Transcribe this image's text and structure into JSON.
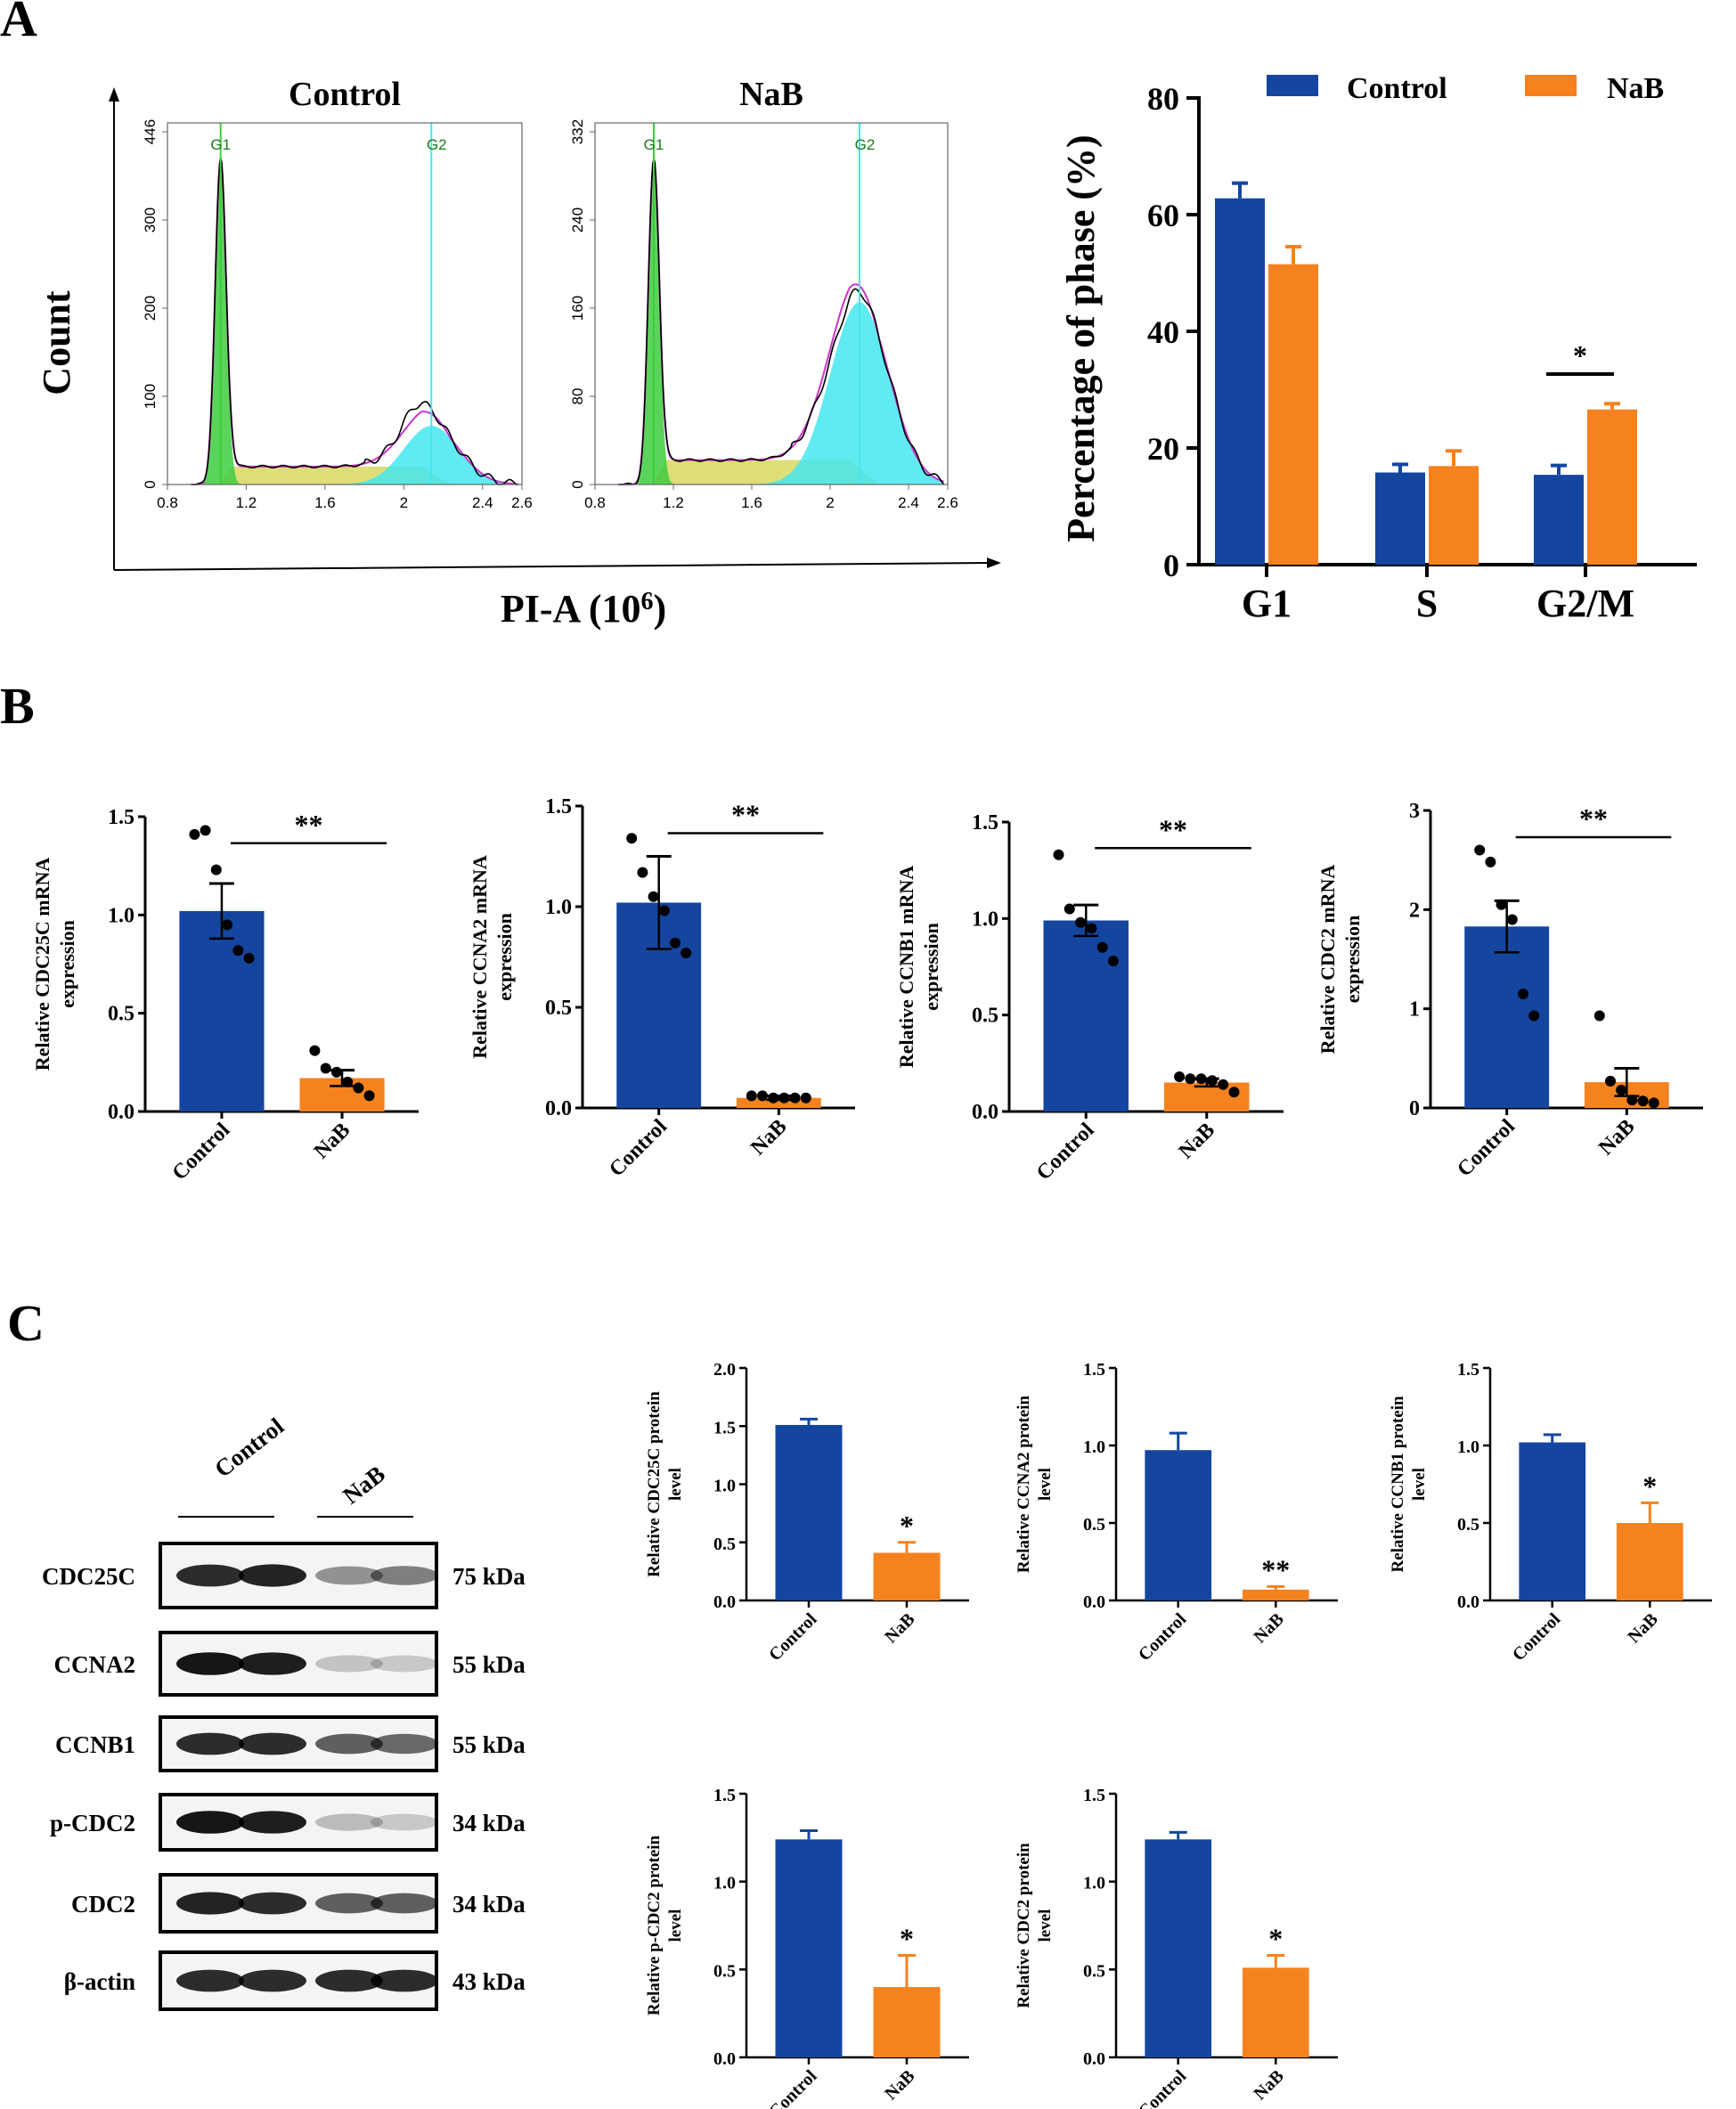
{
  "panels": {
    "a": "A",
    "b": "B",
    "c": "C"
  },
  "colors": {
    "control": "#1446a0",
    "nab": "#f5821f",
    "green": "#3dcc3d",
    "yellow": "#d8d860",
    "cyan": "#44e6ee",
    "magenta": "#cc33cc"
  },
  "flow": {
    "ylabel": "Count",
    "xlabel": "PI-A (10",
    "xlabel_sup": "6",
    "xlabel_close": ")",
    "plots": [
      {
        "title": "Control",
        "yticks": [
          "0",
          "100",
          "200",
          "300",
          "446"
        ],
        "xticks": [
          "0.8",
          "1.2",
          "1.6",
          "2",
          "2.4",
          "2.6"
        ],
        "gates": [
          "G1",
          "G2"
        ]
      },
      {
        "title": "NaB",
        "yticks": [
          "0",
          "80",
          "160",
          "240",
          "332"
        ],
        "xticks": [
          "0.8",
          "1.2",
          "1.6",
          "2",
          "2.4",
          "2.6"
        ],
        "gates": [
          "G1",
          "G2"
        ]
      }
    ]
  },
  "chart_data": [
    {
      "id": "phase",
      "type": "bar",
      "ylabel": "Percentage of phase (%)",
      "categories": [
        "G1",
        "S",
        "G2/M"
      ],
      "ylim": [
        0,
        80
      ],
      "yticks": [
        "0",
        "20",
        "40",
        "60",
        "80"
      ],
      "legend": [
        "Control",
        "NaB"
      ],
      "series": [
        {
          "name": "Control",
          "values": [
            62.8,
            15.8,
            15.4
          ],
          "err": [
            2.6,
            1.4,
            1.6
          ]
        },
        {
          "name": "NaB",
          "values": [
            51.5,
            16.9,
            26.6
          ],
          "err": [
            3.0,
            2.6,
            1.0
          ]
        }
      ],
      "sig": "*"
    },
    {
      "id": "b1",
      "type": "bar",
      "ylabel": [
        "Relative CDC25C mRNA",
        "expression"
      ],
      "categories": [
        "Control",
        "NaB"
      ],
      "ylim": [
        0,
        1.5
      ],
      "yticks": [
        "0.0",
        "0.5",
        "1.0",
        "1.5"
      ],
      "values": [
        1.02,
        0.17
      ],
      "err": [
        0.14,
        0.04
      ],
      "points": [
        [
          1.41,
          1.43,
          1.23,
          0.95,
          0.82,
          0.78
        ],
        [
          0.31,
          0.22,
          0.2,
          0.15,
          0.12,
          0.08
        ]
      ],
      "sig": "**"
    },
    {
      "id": "b2",
      "type": "bar",
      "ylabel": [
        "Relative CCNA2 mRNA",
        "expression"
      ],
      "categories": [
        "Control",
        "NaB"
      ],
      "ylim": [
        0,
        1.5
      ],
      "yticks": [
        "0.0",
        "0.5",
        "1.0",
        "1.5"
      ],
      "values": [
        1.02,
        0.05
      ],
      "err": [
        0.23,
        0.01
      ],
      "points": [
        [
          1.34,
          1.17,
          1.05,
          0.98,
          0.82,
          0.77
        ],
        [
          0.06,
          0.06,
          0.05,
          0.05,
          0.05,
          0.05
        ]
      ],
      "sig": "**"
    },
    {
      "id": "b3",
      "type": "bar",
      "ylabel": [
        "Relative CCNB1 mRNA",
        "expression"
      ],
      "categories": [
        "Control",
        "NaB"
      ],
      "ylim": [
        0,
        1.5
      ],
      "yticks": [
        "0.0",
        "0.5",
        "1.0",
        "1.5"
      ],
      "values": [
        0.99,
        0.15
      ],
      "err": [
        0.08,
        0.02
      ],
      "points": [
        [
          1.33,
          1.05,
          0.98,
          0.95,
          0.85,
          0.78
        ],
        [
          0.18,
          0.17,
          0.17,
          0.16,
          0.14,
          0.1
        ]
      ],
      "sig": "**"
    },
    {
      "id": "b4",
      "type": "bar",
      "ylabel": [
        "Relative CDC2 mRNA",
        "expression"
      ],
      "categories": [
        "Control",
        "NaB"
      ],
      "ylim": [
        0,
        3
      ],
      "yticks": [
        "0",
        "1",
        "2",
        "3"
      ],
      "values": [
        1.83,
        0.26
      ],
      "err": [
        0.26,
        0.14
      ],
      "points": [
        [
          2.6,
          2.48,
          2.05,
          1.9,
          1.15,
          0.93
        ],
        [
          0.93,
          0.27,
          0.18,
          0.08,
          0.07,
          0.05
        ]
      ],
      "sig": "**"
    },
    {
      "id": "c1",
      "type": "bar",
      "ylabel": [
        "Relative CDC25C protein",
        "level"
      ],
      "categories": [
        "Control",
        "NaB"
      ],
      "ylim": [
        0,
        2
      ],
      "yticks": [
        "0.0",
        "0.5",
        "1.0",
        "1.5",
        "2.0"
      ],
      "values": [
        1.51,
        0.41
      ],
      "err": [
        0.05,
        0.09
      ],
      "sig": "*"
    },
    {
      "id": "c2",
      "type": "bar",
      "ylabel": [
        "Relative CCNA2 protein",
        "level"
      ],
      "categories": [
        "Control",
        "NaB"
      ],
      "ylim": [
        0,
        1.5
      ],
      "yticks": [
        "0.0",
        "0.5",
        "1.0",
        "1.5"
      ],
      "values": [
        0.97,
        0.07
      ],
      "err": [
        0.11,
        0.02
      ],
      "sig": "**"
    },
    {
      "id": "c3",
      "type": "bar",
      "ylabel": [
        "Relative CCNB1 protein",
        "level"
      ],
      "categories": [
        "Control",
        "NaB"
      ],
      "ylim": [
        0,
        1.5
      ],
      "yticks": [
        "0.0",
        "0.5",
        "1.0",
        "1.5"
      ],
      "values": [
        1.02,
        0.5
      ],
      "err": [
        0.05,
        0.13
      ],
      "sig": "*"
    },
    {
      "id": "c4",
      "type": "bar",
      "ylabel": [
        "Relative p-CDC2 protein",
        "level"
      ],
      "categories": [
        "Control",
        "NaB"
      ],
      "ylim": [
        0,
        1.5
      ],
      "yticks": [
        "0.0",
        "0.5",
        "1.0",
        "1.5"
      ],
      "values": [
        1.24,
        0.4
      ],
      "err": [
        0.05,
        0.18
      ],
      "sig": "*"
    },
    {
      "id": "c5",
      "type": "bar",
      "ylabel": [
        "Relative CDC2 protein",
        "level"
      ],
      "categories": [
        "Control",
        "NaB"
      ],
      "ylim": [
        0,
        1.5
      ],
      "yticks": [
        "0.0",
        "0.5",
        "1.0",
        "1.5"
      ],
      "values": [
        1.24,
        0.51
      ],
      "err": [
        0.04,
        0.07
      ],
      "sig": "*"
    }
  ],
  "western": {
    "groups": [
      "Control",
      "NaB"
    ],
    "rows": [
      {
        "protein": "CDC25C",
        "size": "75 kDa",
        "intensity": [
          0.85,
          0.9,
          0.35,
          0.45
        ]
      },
      {
        "protein": "CCNA2",
        "size": "55 kDa",
        "intensity": [
          0.95,
          0.92,
          0.12,
          0.1
        ]
      },
      {
        "protein": "CCNB1",
        "size": "55 kDa",
        "intensity": [
          0.85,
          0.85,
          0.6,
          0.55
        ]
      },
      {
        "protein": "p-CDC2",
        "size": "34 kDa",
        "intensity": [
          0.95,
          0.92,
          0.15,
          0.1
        ]
      },
      {
        "protein": "CDC2",
        "size": "34 kDa",
        "intensity": [
          0.9,
          0.85,
          0.6,
          0.6
        ]
      },
      {
        "protein": "β-actin",
        "size": "43 kDa",
        "intensity": [
          0.85,
          0.85,
          0.85,
          0.85
        ]
      }
    ]
  }
}
